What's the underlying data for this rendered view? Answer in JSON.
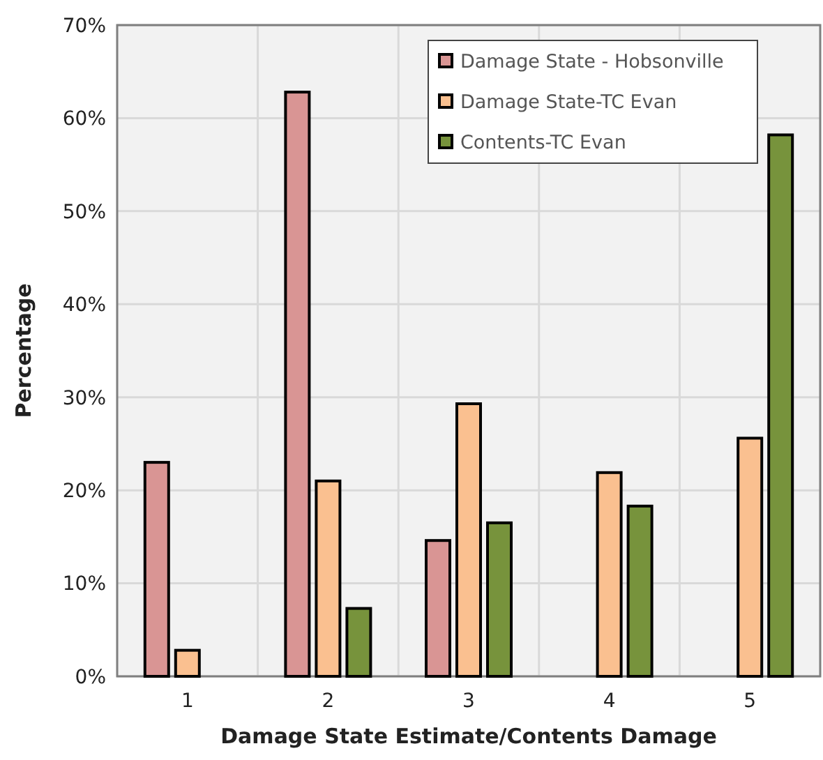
{
  "chart_data": {
    "type": "bar",
    "xlabel": "Damage State Estimate/Contents Damage",
    "ylabel": "Percentage",
    "categories": [
      "1",
      "2",
      "3",
      "4",
      "5"
    ],
    "series": [
      {
        "name": "Damage State - Hobsonville",
        "color": "#d99594",
        "values": [
          23,
          62.8,
          14.6,
          null,
          null
        ]
      },
      {
        "name": "Damage State-TC Evan",
        "color": "#fac090",
        "values": [
          2.8,
          21,
          29.3,
          21.9,
          25.6
        ]
      },
      {
        "name": "Contents-TC Evan",
        "color": "#77933c",
        "values": [
          null,
          7.3,
          16.5,
          18.3,
          58.2
        ]
      }
    ],
    "ylim": [
      0,
      70
    ],
    "yticks": [
      {
        "value": 0,
        "label": "0%"
      },
      {
        "value": 10,
        "label": "10%"
      },
      {
        "value": 20,
        "label": "20%"
      },
      {
        "value": 30,
        "label": "30%"
      },
      {
        "value": 40,
        "label": "40%"
      },
      {
        "value": 50,
        "label": "50%"
      },
      {
        "value": 60,
        "label": "60%"
      },
      {
        "value": 70,
        "label": "70%"
      }
    ],
    "grid": true,
    "legend": "top right"
  }
}
